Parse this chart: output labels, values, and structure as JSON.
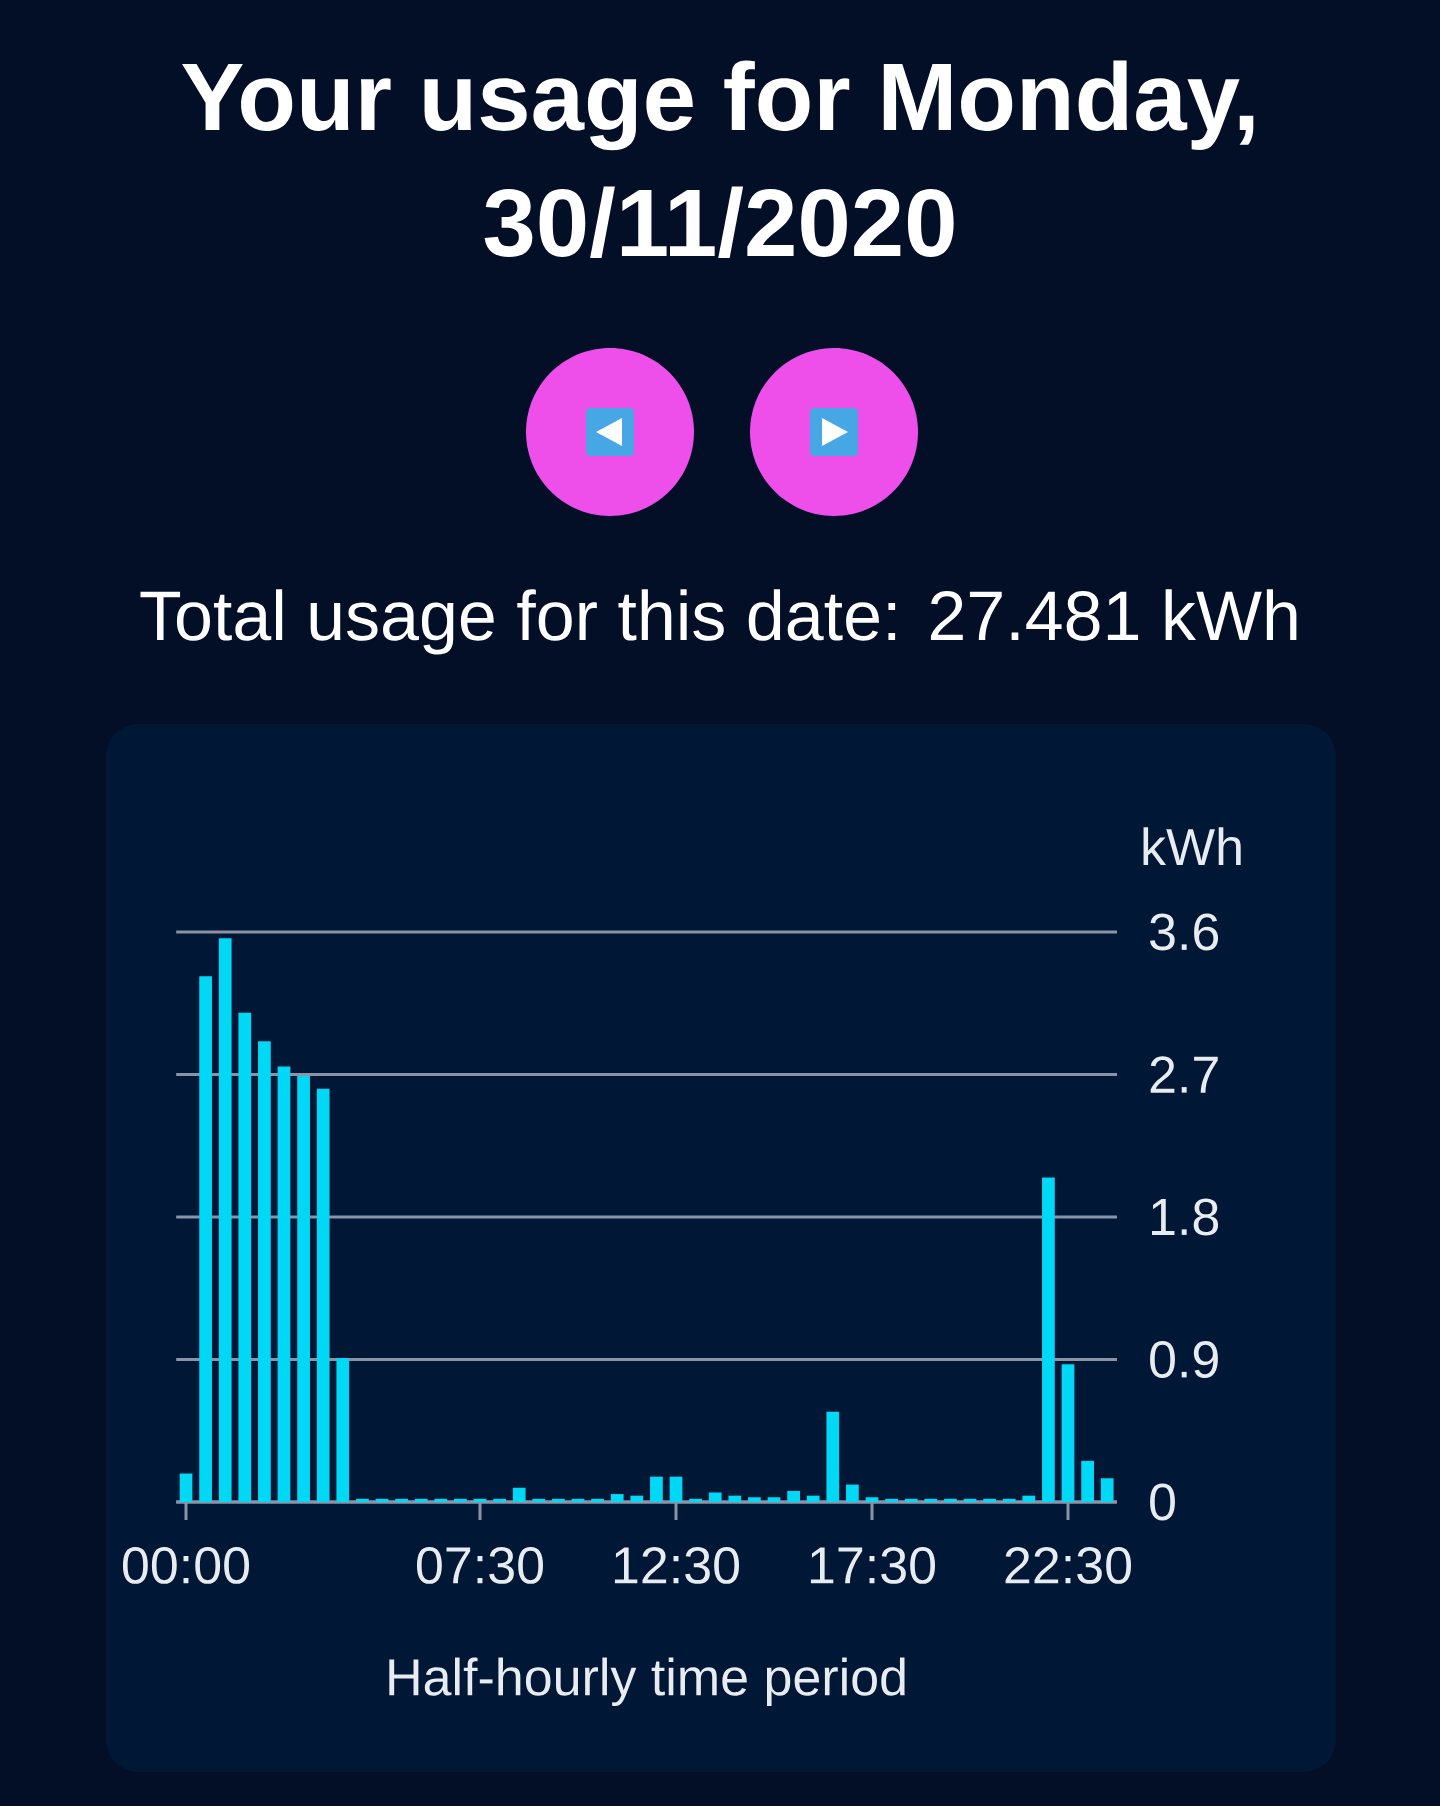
{
  "chart_data": {
    "type": "bar",
    "title": "Your usage for Monday, 30/11/2020",
    "subtitle": "Total usage for this date: 27.481 kWh",
    "xlabel": "Half-hourly time period",
    "ylabel": "kWh",
    "categories": [
      "00:00",
      null,
      null,
      null,
      null,
      null,
      null,
      null,
      null,
      null,
      null,
      null,
      null,
      null,
      null,
      "07:30",
      null,
      null,
      null,
      null,
      null,
      null,
      null,
      null,
      null,
      "12:30",
      null,
      null,
      null,
      null,
      null,
      null,
      null,
      null,
      null,
      "17:30",
      null,
      null,
      null,
      null,
      null,
      null,
      null,
      null,
      null,
      "22:30",
      null,
      null
    ],
    "values": [
      0.18,
      3.32,
      3.56,
      3.09,
      2.91,
      2.75,
      2.69,
      2.61,
      0.91,
      0.02,
      0.02,
      0.02,
      0.02,
      0.02,
      0.02,
      0.02,
      0.02,
      0.09,
      0.02,
      0.02,
      0.02,
      0.02,
      0.05,
      0.04,
      0.16,
      0.16,
      0.02,
      0.06,
      0.04,
      0.03,
      0.03,
      0.07,
      0.04,
      0.57,
      0.11,
      0.03,
      0.02,
      0.02,
      0.02,
      0.02,
      0.02,
      0.02,
      0.02,
      0.04,
      2.05,
      0.87,
      0.26,
      0.15
    ],
    "color": "#00d8f5",
    "ylim": [
      0,
      3.6
    ],
    "yticks": [
      0,
      0.9,
      1.8,
      2.7,
      3.6
    ],
    "grid": "y"
  }
}
